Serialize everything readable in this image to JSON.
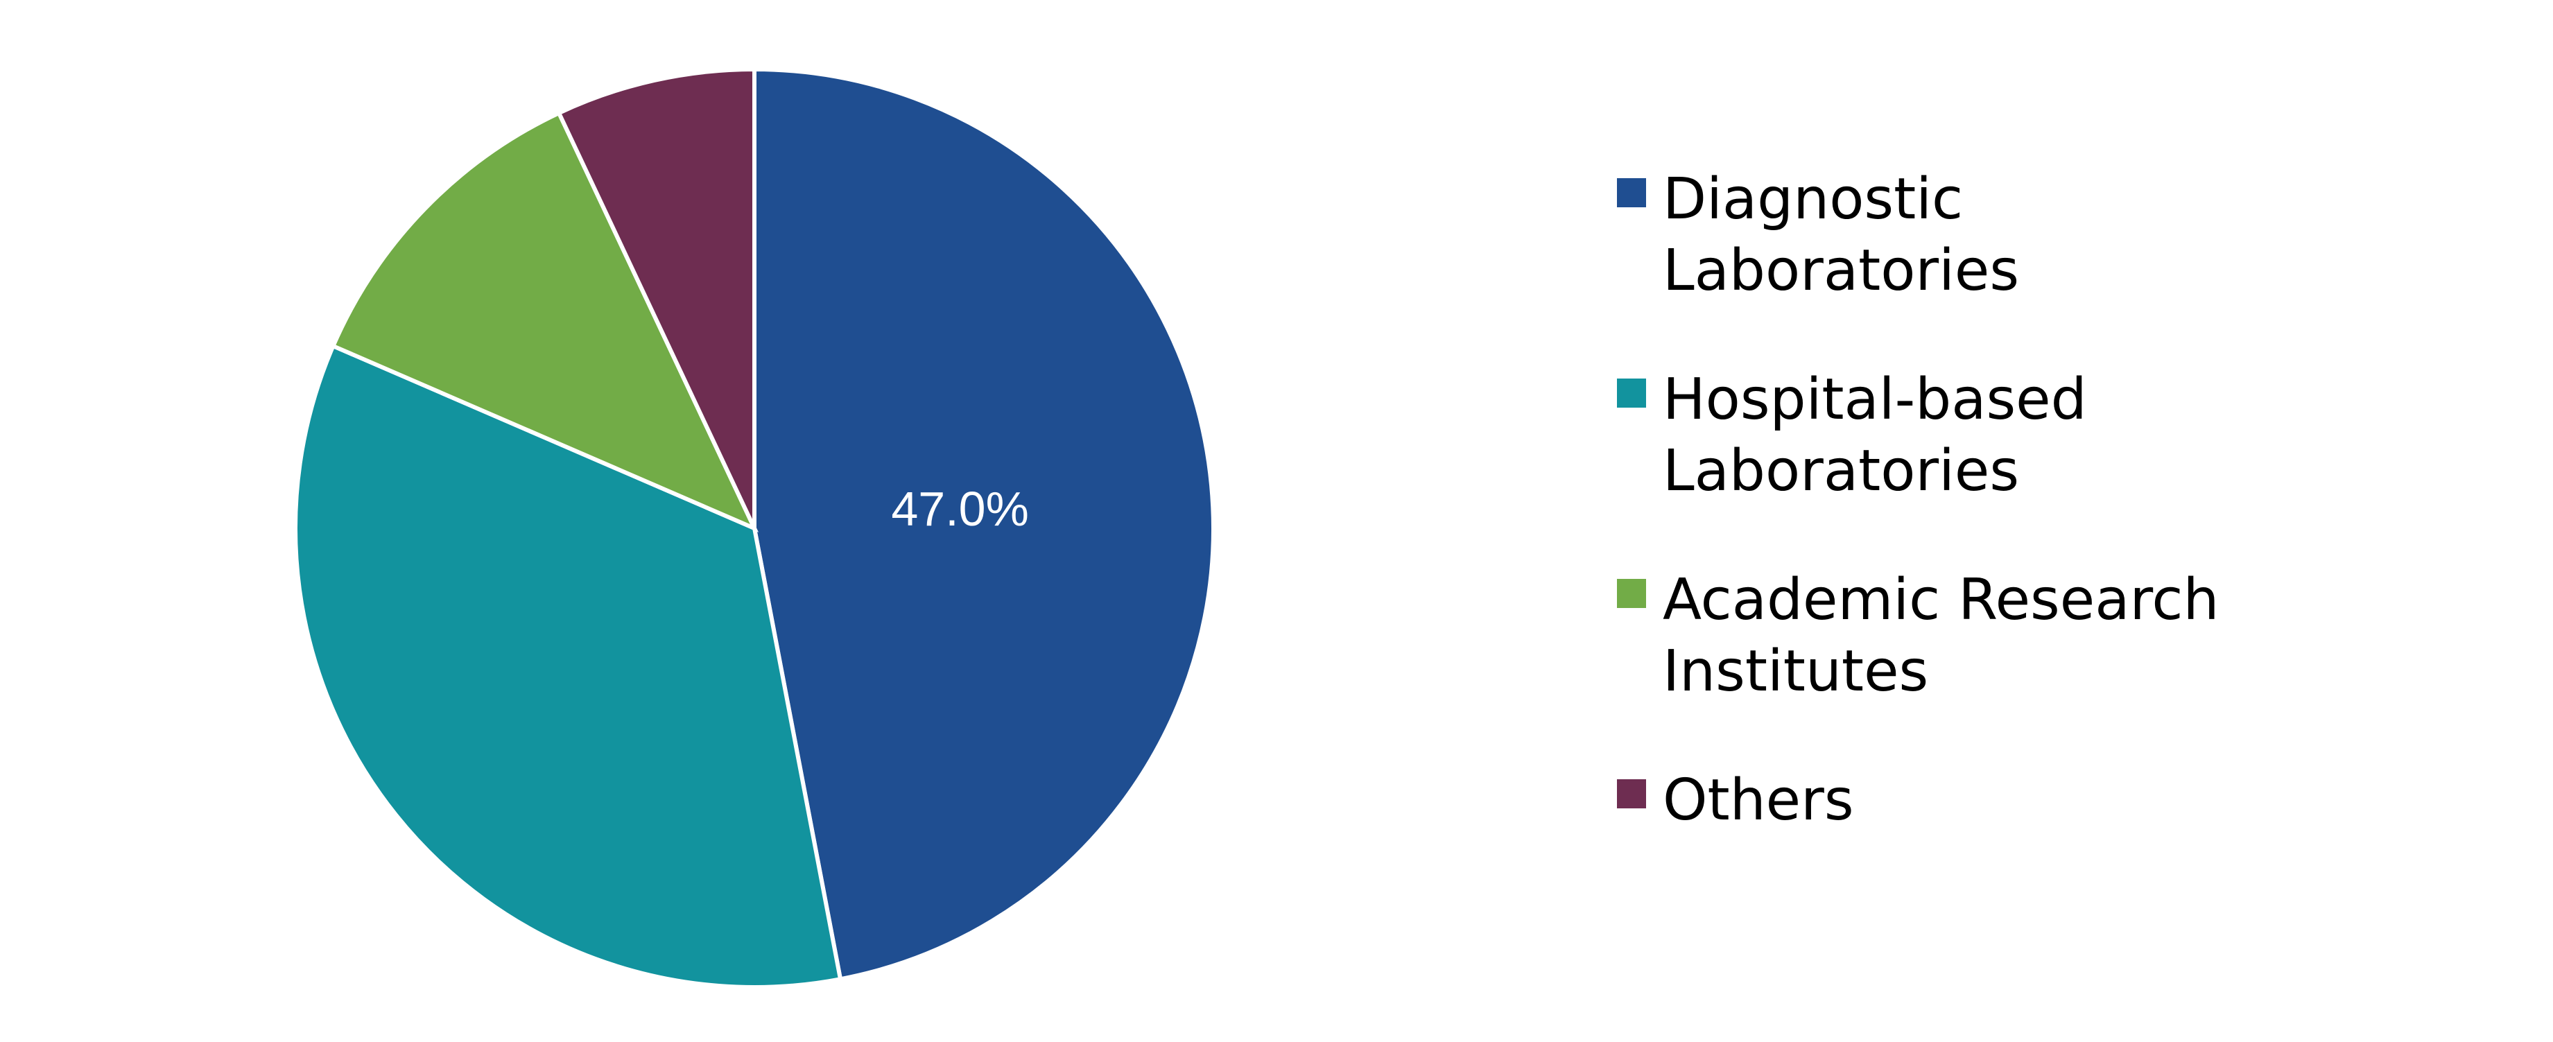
{
  "chart_data": {
    "type": "pie",
    "start_angle_deg": 0,
    "direction": "clockwise",
    "legend_position": "right",
    "series": [
      {
        "slices": [
          {
            "category": "Diagnostic Laboratories",
            "legend_lines": [
              "Diagnostic",
              "Laboratories"
            ],
            "value": 47.0,
            "color": "#1f4e91",
            "data_label": "47.0%"
          },
          {
            "category": "Hospital-based Laboratories",
            "legend_lines": [
              "Hospital-based",
              "Laboratories"
            ],
            "value": 34.5,
            "color": "#12939e",
            "data_label": ""
          },
          {
            "category": "Academic Research Institutes",
            "legend_lines": [
              "Academic Research",
              "Institutes"
            ],
            "value": 11.5,
            "color": "#72ac47",
            "data_label": ""
          },
          {
            "category": "Others",
            "legend_lines": [
              "Others"
            ],
            "value": 7.0,
            "color": "#6e2d51",
            "data_label": ""
          }
        ]
      }
    ]
  }
}
